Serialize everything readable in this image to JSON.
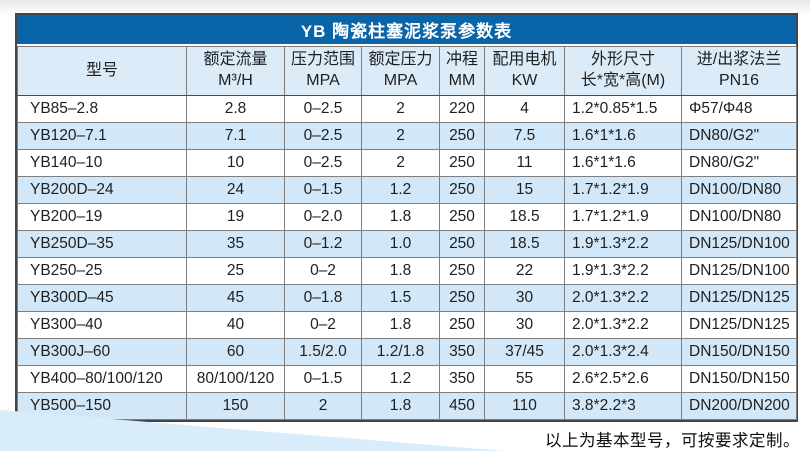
{
  "table": {
    "title": "YB 陶瓷柱塞泥浆泵参数表",
    "columns": [
      {
        "lines": [
          "型号"
        ]
      },
      {
        "lines": [
          "额定流量",
          "M³/H"
        ]
      },
      {
        "lines": [
          "压力范围",
          "MPA"
        ]
      },
      {
        "lines": [
          "额定压力",
          "MPA"
        ]
      },
      {
        "lines": [
          "冲程",
          "MM"
        ]
      },
      {
        "lines": [
          "配用电机",
          "KW"
        ]
      },
      {
        "lines": [
          "外形尺寸",
          "长*宽*高(M)"
        ]
      },
      {
        "lines": [
          "进/出浆法兰",
          "PN16"
        ]
      }
    ],
    "rows": [
      [
        "YB85–2.8",
        "2.8",
        "0–2.5",
        "2",
        "220",
        "4",
        "1.2*0.85*1.5",
        "Φ57/Φ48"
      ],
      [
        "YB120–7.1",
        "7.1",
        "0–2.5",
        "2",
        "250",
        "7.5",
        "1.6*1*1.6",
        "DN80/G2\""
      ],
      [
        "YB140–10",
        "10",
        "0–2.5",
        "2",
        "250",
        "11",
        "1.6*1*1.6",
        "DN80/G2\""
      ],
      [
        "YB200D–24",
        "24",
        "0–1.5",
        "1.2",
        "250",
        "15",
        "1.7*1.2*1.9",
        "DN100/DN80"
      ],
      [
        "YB200–19",
        "19",
        "0–2.0",
        "1.8",
        "250",
        "18.5",
        "1.7*1.2*1.9",
        "DN100/DN80"
      ],
      [
        "YB250D–35",
        "35",
        "0–1.2",
        "1.0",
        "250",
        "18.5",
        "1.9*1.3*2.2",
        "DN125/DN100"
      ],
      [
        "YB250–25",
        "25",
        "0–2",
        "1.8",
        "250",
        "22",
        "1.9*1.3*2.2",
        "DN125/DN100"
      ],
      [
        "YB300D–45",
        "45",
        "0–1.8",
        "1.5",
        "250",
        "30",
        "2.0*1.3*2.2",
        "DN125/DN125"
      ],
      [
        "YB300–40",
        "40",
        "0–2",
        "1.8",
        "250",
        "30",
        "2.0*1.3*2.2",
        "DN125/DN125"
      ],
      [
        "YB300J–60",
        "60",
        "1.5/2.0",
        "1.2/1.8",
        "350",
        "37/45",
        "2.0*1.3*2.4",
        "DN150/DN150"
      ],
      [
        "YB400–80/100/120",
        "80/100/120",
        "0–1.5",
        "1.2",
        "350",
        "55",
        "2.6*2.5*2.6",
        "DN150/DN150"
      ],
      [
        "YB500–150",
        "150",
        "2",
        "1.8",
        "450",
        "110",
        "3.8*2.2*3",
        "DN200/DN200"
      ]
    ]
  },
  "footer": {
    "note": "以上为基本型号，可按要求定制。"
  },
  "colors": {
    "title_bar_bg": "#0a64a8",
    "title_text": "#ffffff",
    "header_row_bg": "#dcebf8",
    "row_alt_bg": "#d2e7f7",
    "row_bg": "#ffffff",
    "grid_line": "#7e7e7e",
    "outer_border": "#454545",
    "text": "#1f1f1f",
    "wedge": "#d9ecf9"
  }
}
